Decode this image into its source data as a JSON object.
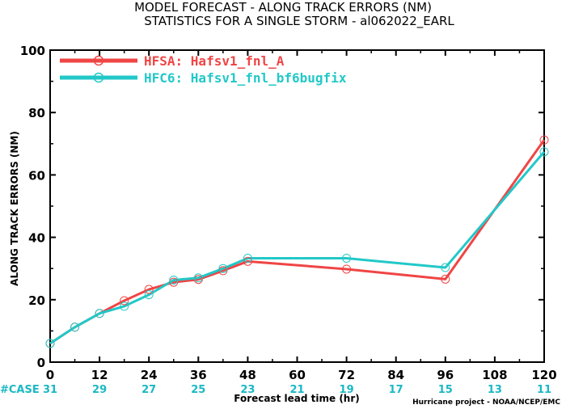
{
  "chart_data": {
    "type": "line",
    "title": "MODEL FORECAST - ALONG TRACK ERRORS (NM)",
    "subtitle": "STATISTICS FOR A SINGLE STORM - al062022_EARL",
    "xlabel": "Forecast lead time (hr)",
    "ylabel": "ALONG TRACK ERRORS (NM)",
    "xlim": [
      0,
      120
    ],
    "ylim": [
      0,
      100
    ],
    "x_ticks": [
      "0",
      "12",
      "24",
      "36",
      "48",
      "60",
      "72",
      "84",
      "96",
      "108",
      "120"
    ],
    "y_ticks": [
      "0",
      "20",
      "40",
      "60",
      "80",
      "100"
    ],
    "legend_position": "top-left",
    "grid": false,
    "case_label": "#CASE",
    "case_counts": [
      "31",
      "29",
      "27",
      "25",
      "23",
      "21",
      "19",
      "17",
      "15",
      "13",
      "11"
    ],
    "case_color": "#1ab8c4",
    "credit": "Hurricane project - NOAA/NCEP/EMC",
    "series": [
      {
        "name": "HFSA: Hafsv1_fnl_A",
        "color": "#f04545",
        "x": [
          0,
          6,
          12,
          18,
          24,
          30,
          36,
          42,
          48,
          72,
          96,
          120
        ],
        "y": [
          6.0,
          11.2,
          15.6,
          19.7,
          23.3,
          25.6,
          26.5,
          29.3,
          32.3,
          29.8,
          26.6,
          71.2
        ]
      },
      {
        "name": "HFC6: Hafsv1_fnl_bf6bugfix",
        "color": "#22c8c8",
        "x": [
          0,
          6,
          12,
          18,
          24,
          30,
          36,
          42,
          48,
          72,
          96,
          120
        ],
        "y": [
          6.0,
          11.2,
          15.6,
          17.9,
          21.6,
          26.3,
          27.0,
          30.0,
          33.3,
          33.3,
          30.3,
          67.4
        ]
      }
    ]
  }
}
